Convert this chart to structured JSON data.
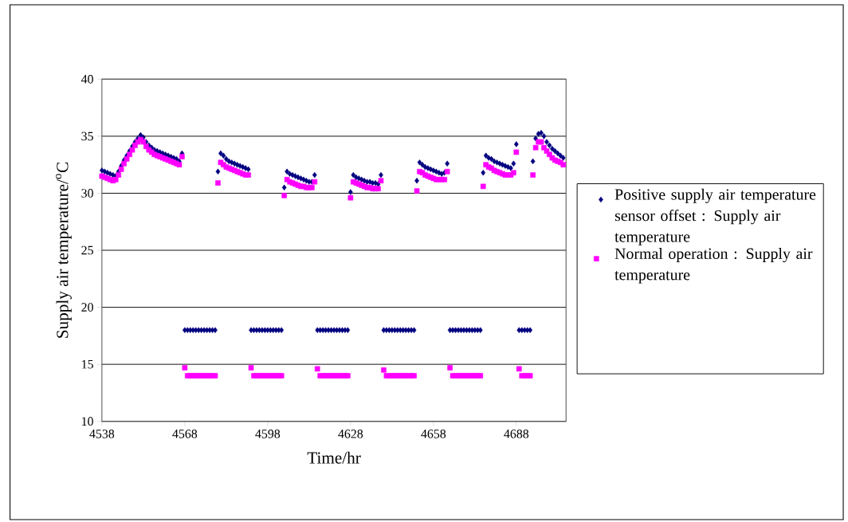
{
  "chart_data": {
    "type": "scatter",
    "xlabel": "Time/hr",
    "ylabel": "Supply air temperature/$^{o}$C",
    "x": [
      4538,
      4539,
      4540,
      4541,
      4542,
      4543,
      4544,
      4545,
      4546,
      4547,
      4548,
      4549,
      4550,
      4551,
      4552,
      4553,
      4554,
      4555,
      4556,
      4557,
      4558,
      4559,
      4560,
      4561,
      4562,
      4563,
      4564,
      4565,
      4566,
      4567,
      4568,
      4569,
      4570,
      4571,
      4572,
      4573,
      4574,
      4575,
      4576,
      4577,
      4578,
      4579,
      4580,
      4581,
      4582,
      4583,
      4584,
      4585,
      4586,
      4587,
      4588,
      4589,
      4590,
      4591,
      4592,
      4593,
      4594,
      4595,
      4596,
      4597,
      4598,
      4599,
      4600,
      4601,
      4602,
      4603,
      4604,
      4605,
      4606,
      4607,
      4608,
      4609,
      4610,
      4611,
      4612,
      4613,
      4614,
      4615,
      4616,
      4617,
      4618,
      4619,
      4620,
      4621,
      4622,
      4623,
      4624,
      4625,
      4626,
      4627,
      4628,
      4629,
      4630,
      4631,
      4632,
      4633,
      4634,
      4635,
      4636,
      4637,
      4638,
      4639,
      4640,
      4641,
      4642,
      4643,
      4644,
      4645,
      4646,
      4647,
      4648,
      4649,
      4650,
      4651,
      4652,
      4653,
      4654,
      4655,
      4656,
      4657,
      4658,
      4659,
      4660,
      4661,
      4662,
      4663,
      4664,
      4665,
      4666,
      4667,
      4668,
      4669,
      4670,
      4671,
      4672,
      4673,
      4674,
      4675,
      4676,
      4677,
      4678,
      4679,
      4680,
      4681,
      4682,
      4683,
      4684,
      4685,
      4686,
      4687,
      4688,
      4689,
      4690,
      4691,
      4692,
      4693,
      4694,
      4695,
      4696,
      4697,
      4698,
      4699,
      4700,
      4701,
      4702,
      4703,
      4704,
      4705
    ],
    "series": [
      {
        "name": "Positive supply air temperature sensor offset : Supply air temperature",
        "color": "#000080",
        "marker": "diamond",
        "values": [
          32.0,
          31.9,
          31.8,
          31.7,
          31.6,
          31.5,
          31.9,
          32.4,
          32.9,
          33.3,
          33.7,
          34.1,
          34.5,
          34.8,
          35.1,
          34.9,
          34.5,
          34.2,
          34.0,
          33.8,
          33.7,
          33.6,
          33.5,
          33.4,
          33.3,
          33.2,
          33.1,
          33.0,
          32.8,
          33.5,
          18,
          18,
          18,
          18,
          18,
          18,
          18,
          18,
          18,
          18,
          18,
          18,
          31.9,
          33.5,
          33.3,
          33.0,
          32.8,
          32.7,
          32.6,
          32.5,
          32.4,
          32.3,
          32.2,
          32.1,
          18,
          18,
          18,
          18,
          18,
          18,
          18,
          18,
          18,
          18,
          18,
          18,
          30.5,
          31.9,
          31.7,
          31.6,
          31.5,
          31.4,
          31.3,
          31.2,
          31.1,
          31.0,
          31.0,
          31.6,
          18,
          18,
          18,
          18,
          18,
          18,
          18,
          18,
          18,
          18,
          18,
          18,
          30.1,
          31.6,
          31.4,
          31.3,
          31.2,
          31.1,
          31.0,
          31.0,
          30.9,
          30.9,
          30.8,
          31.6,
          18,
          18,
          18,
          18,
          18,
          18,
          18,
          18,
          18,
          18,
          18,
          18,
          31.1,
          32.7,
          32.5,
          32.3,
          32.2,
          32.1,
          32.0,
          31.9,
          31.8,
          31.7,
          31.8,
          32.6,
          18,
          18,
          18,
          18,
          18,
          18,
          18,
          18,
          18,
          18,
          18,
          18,
          31.8,
          33.3,
          33.1,
          33.0,
          32.8,
          32.7,
          32.6,
          32.5,
          32.4,
          32.3,
          32.2,
          32.6,
          34.3,
          18,
          18,
          18,
          18,
          18,
          32.8,
          34.8,
          35.2,
          35.3,
          35.0,
          34.5,
          34.2,
          33.9,
          33.7,
          33.5,
          33.3,
          33.1
        ]
      },
      {
        "name": "Normal operation : Supply air temperature",
        "color": "#ff00ff",
        "marker": "square",
        "values": [
          31.5,
          31.4,
          31.3,
          31.2,
          31.1,
          31.2,
          31.6,
          32.1,
          32.6,
          33.0,
          33.4,
          33.8,
          34.2,
          34.5,
          34.7,
          34.5,
          34.1,
          33.8,
          33.6,
          33.4,
          33.3,
          33.2,
          33.1,
          33.0,
          32.9,
          32.8,
          32.7,
          32.6,
          32.5,
          33.2,
          14.7,
          14,
          14,
          14,
          14,
          14,
          14,
          14,
          14,
          14,
          14,
          14,
          30.9,
          32.7,
          32.5,
          32.3,
          32.2,
          32.1,
          32.0,
          31.9,
          31.8,
          31.7,
          31.6,
          31.6,
          14.7,
          14,
          14,
          14,
          14,
          14,
          14,
          14,
          14,
          14,
          14,
          14,
          29.8,
          31.2,
          31.0,
          30.9,
          30.8,
          30.7,
          30.6,
          30.6,
          30.5,
          30.5,
          30.5,
          31.0,
          14.6,
          14,
          14,
          14,
          14,
          14,
          14,
          14,
          14,
          14,
          14,
          14,
          29.6,
          31.0,
          30.9,
          30.8,
          30.7,
          30.6,
          30.5,
          30.5,
          30.4,
          30.4,
          30.4,
          31.1,
          14.5,
          14,
          14,
          14,
          14,
          14,
          14,
          14,
          14,
          14,
          14,
          14,
          30.2,
          31.9,
          31.8,
          31.6,
          31.5,
          31.4,
          31.3,
          31.2,
          31.2,
          31.2,
          31.2,
          31.9,
          14.7,
          14,
          14,
          14,
          14,
          14,
          14,
          14,
          14,
          14,
          14,
          14,
          30.6,
          32.5,
          32.3,
          32.2,
          32.0,
          31.9,
          31.8,
          31.7,
          31.6,
          31.6,
          31.6,
          31.8,
          33.6,
          14.6,
          14,
          14,
          14,
          14,
          31.6,
          34.0,
          34.5,
          34.5,
          34.0,
          33.7,
          33.4,
          33.1,
          32.9,
          32.8,
          32.7,
          32.5
        ]
      }
    ],
    "xlim": [
      4538,
      4706
    ],
    "xticks": [
      4538,
      4568,
      4598,
      4628,
      4658,
      4688
    ],
    "ylim": [
      10,
      40
    ],
    "yticks": [
      10,
      15,
      20,
      25,
      30,
      35,
      40
    ],
    "grid": "y",
    "legend": "right"
  }
}
